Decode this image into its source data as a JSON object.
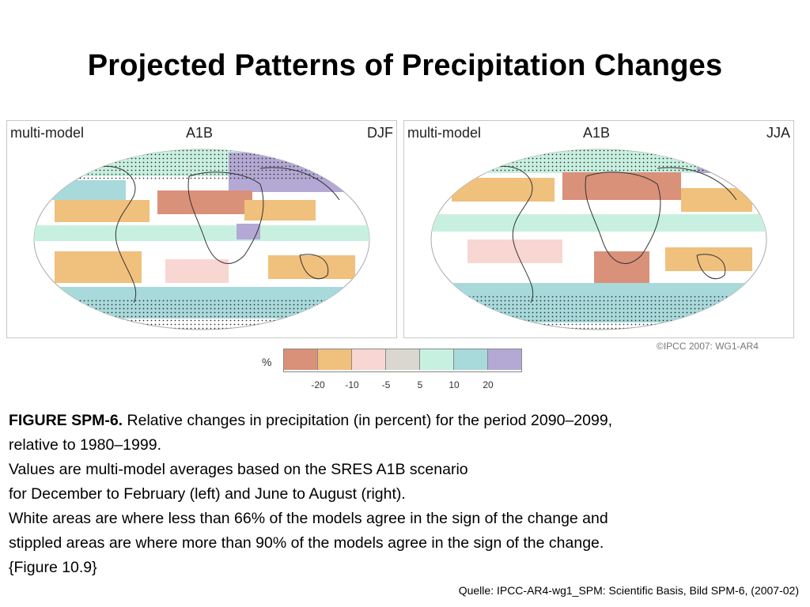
{
  "title": "Projected Patterns of Precipitation Changes",
  "maps": [
    {
      "model": "multi-model",
      "scenario": "A1B",
      "season": "DJF"
    },
    {
      "model": "multi-model",
      "scenario": "A1B",
      "season": "JJA"
    }
  ],
  "watermark": "©IPCC 2007: WG1-AR4",
  "legend": {
    "unit": "%",
    "colors": [
      "#d9917a",
      "#f0c07d",
      "#f8d6d2",
      "#d9d7d0",
      "#c8f0e0",
      "#a8d9db",
      "#b4a9d4"
    ],
    "ticks": [
      "-20",
      "-10",
      "-5",
      "5",
      "10",
      "20"
    ]
  },
  "caption": {
    "fig_label": "FIGURE SPM-6.",
    "line1": " Relative changes in precipitation (in percent) for the period 2090–2099,",
    "line2": " relative to 1980–1999.",
    "line3": "Values are multi-model averages based on the SRES A1B scenario",
    "line4": " for December to February (left) and June to August (right).",
    "line5": "White areas are where less than 66% of the models agree in the sign of the change  and",
    "line6": "stippled areas are where more than 90% of the models agree in the sign of the change.",
    "line7": "{Figure 10.9}"
  },
  "source": "Quelle: IPCC-AR4-wg1_SPM: Scientific Basis, Bild SPM-6,  (2007-02)"
}
